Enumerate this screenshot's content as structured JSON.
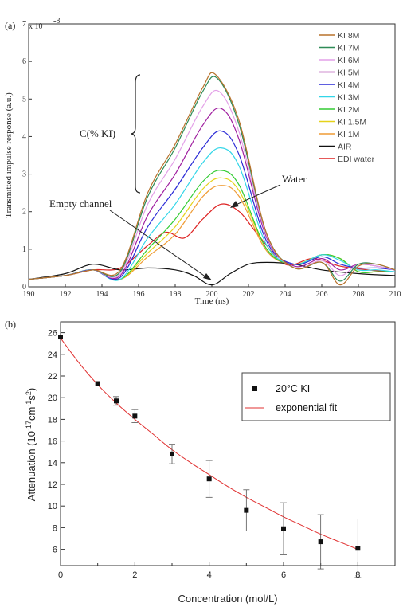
{
  "chart_data": [
    {
      "type": "line",
      "panel_label": "(a)",
      "xlabel": "Time (ns)",
      "ylabel": "Transmitted impulse response (a.u.)",
      "exponent_label": "x 10",
      "exponent_power": "-8",
      "xlim": [
        190,
        210
      ],
      "ylim": [
        0,
        7
      ],
      "xticks": [
        "190",
        "192",
        "194",
        "196",
        "198",
        "200",
        "202",
        "204",
        "206",
        "208",
        "210"
      ],
      "yticks": [
        "0",
        "1",
        "2",
        "3",
        "4",
        "5",
        "6",
        "7"
      ],
      "legend_position": "top-right",
      "series": [
        {
          "name": "KI 8M",
          "color": "#b8722c",
          "x": [
            190,
            192,
            193.5,
            195,
            196.5,
            198,
            199.5,
            200.2,
            201.5,
            203,
            204.5,
            206,
            207,
            208,
            209,
            210
          ],
          "y": [
            0.2,
            0.3,
            0.45,
            0.45,
            2.5,
            3.8,
            5.3,
            5.65,
            4.4,
            1.4,
            0.5,
            0.65,
            0.05,
            0.55,
            0.6,
            0.45
          ]
        },
        {
          "name": "KI 7M",
          "color": "#2e8b57",
          "x": [
            190,
            192,
            193.5,
            195,
            196.5,
            198,
            199.5,
            200.3,
            201.5,
            203,
            204.5,
            206,
            207,
            208,
            209,
            210
          ],
          "y": [
            0.2,
            0.3,
            0.45,
            0.4,
            2.4,
            3.7,
            5.2,
            5.55,
            4.3,
            1.4,
            0.5,
            0.65,
            0.15,
            0.6,
            0.6,
            0.45
          ]
        },
        {
          "name": "KI 6M",
          "color": "#e3a0e8",
          "x": [
            190,
            192,
            193.5,
            195,
            196.5,
            198,
            199.5,
            200.4,
            201.5,
            203,
            204.5,
            206,
            207,
            208,
            209,
            210
          ],
          "y": [
            0.2,
            0.3,
            0.45,
            0.35,
            2.2,
            3.4,
            4.8,
            5.2,
            4.1,
            1.35,
            0.5,
            0.7,
            0.3,
            0.6,
            0.55,
            0.45
          ]
        },
        {
          "name": "KI 5M",
          "color": "#a020a0",
          "x": [
            190,
            192,
            193.5,
            195,
            196.5,
            198,
            199.5,
            200.5,
            201.5,
            203,
            204.5,
            206,
            207,
            208,
            209,
            210
          ],
          "y": [
            0.2,
            0.3,
            0.45,
            0.3,
            1.9,
            3.0,
            4.3,
            4.75,
            3.9,
            1.3,
            0.55,
            0.75,
            0.45,
            0.6,
            0.55,
            0.45
          ]
        },
        {
          "name": "KI 4M",
          "color": "#2a2ad6",
          "x": [
            190,
            192,
            193.5,
            195,
            196.5,
            198,
            199.5,
            200.5,
            201.5,
            203,
            204.5,
            206,
            207,
            208,
            209,
            210
          ],
          "y": [
            0.2,
            0.3,
            0.45,
            0.25,
            1.6,
            2.6,
            3.7,
            4.15,
            3.5,
            1.2,
            0.6,
            0.8,
            0.6,
            0.5,
            0.5,
            0.45
          ]
        },
        {
          "name": "KI 3M",
          "color": "#33d6e8",
          "x": [
            190,
            192,
            193.5,
            195,
            196.5,
            198,
            199.5,
            200.5,
            201.5,
            203,
            204.5,
            206,
            207,
            208,
            209,
            210
          ],
          "y": [
            0.2,
            0.3,
            0.45,
            0.2,
            1.3,
            2.2,
            3.3,
            3.7,
            3.2,
            1.1,
            0.6,
            0.85,
            0.7,
            0.45,
            0.45,
            0.4
          ]
        },
        {
          "name": "KI 2M",
          "color": "#33cc33",
          "x": [
            190,
            192,
            193.5,
            195,
            196.5,
            198,
            199.5,
            200.5,
            201.5,
            203,
            204.5,
            206,
            207,
            208,
            209,
            210
          ],
          "y": [
            0.2,
            0.3,
            0.45,
            0.2,
            1.0,
            1.8,
            2.8,
            3.1,
            2.7,
            1.0,
            0.6,
            0.85,
            0.75,
            0.4,
            0.4,
            0.4
          ]
        },
        {
          "name": "KI 1.5M",
          "color": "#e6d21a",
          "x": [
            190,
            192,
            193.5,
            195,
            196.5,
            198,
            199.5,
            200.5,
            201.5,
            203,
            204.5,
            206,
            207,
            208,
            209,
            210
          ],
          "y": [
            0.2,
            0.3,
            0.45,
            0.2,
            0.9,
            1.6,
            2.6,
            2.9,
            2.55,
            1.0,
            0.6,
            0.85,
            0.75,
            0.4,
            0.4,
            0.4
          ]
        },
        {
          "name": "KI 1M",
          "color": "#ef9c35",
          "x": [
            190,
            192,
            193.5,
            195,
            196.5,
            198,
            199.5,
            200.5,
            201.5,
            203,
            204.5,
            206,
            207,
            208,
            209,
            210
          ],
          "y": [
            0.2,
            0.3,
            0.45,
            0.2,
            0.8,
            1.4,
            2.4,
            2.7,
            2.4,
            0.95,
            0.6,
            0.85,
            0.75,
            0.4,
            0.4,
            0.4
          ]
        },
        {
          "name": "AIR",
          "color": "#111111",
          "x": [
            190,
            192,
            193.5,
            195,
            196.5,
            198,
            199,
            200,
            201,
            202,
            203,
            204.5,
            206,
            208,
            210
          ],
          "y": [
            0.2,
            0.35,
            0.6,
            0.45,
            0.5,
            0.45,
            0.3,
            0.05,
            0.35,
            0.6,
            0.65,
            0.6,
            0.45,
            0.35,
            0.3
          ]
        },
        {
          "name": "EDI water",
          "color": "#dd2222",
          "x": [
            190,
            192,
            193.5,
            195,
            196.5,
            197.5,
            198.5,
            199.5,
            200.5,
            201.5,
            202.5,
            204,
            205.5,
            207,
            208.5,
            210
          ],
          "y": [
            0.2,
            0.3,
            0.45,
            0.5,
            1.1,
            1.45,
            1.3,
            1.8,
            2.2,
            2.0,
            1.4,
            0.6,
            0.75,
            0.55,
            0.45,
            0.4
          ]
        }
      ],
      "annotations": [
        "C(% KI)",
        "Empty channel",
        "Water"
      ]
    },
    {
      "type": "scatter",
      "panel_label": "(b)",
      "xlabel": "Concentration (mol/L)",
      "ylabel": "Attenuation (10",
      "ylabel_sup1": "-17",
      "ylabel_mid": "cm",
      "ylabel_sup2": "-1",
      "ylabel_mid2": "s",
      "ylabel_sup3": "2",
      "ylabel_end": ")",
      "xlim": [
        0,
        9
      ],
      "ylim": [
        4.5,
        27
      ],
      "xticks": [
        "0",
        "2",
        "4",
        "6",
        "8"
      ],
      "yticks": [
        "6",
        "8",
        "10",
        "12",
        "14",
        "16",
        "18",
        "20",
        "22",
        "24",
        "26"
      ],
      "legend_position": "top-right",
      "series": [
        {
          "name": "20°C KI",
          "color": "#111111",
          "x": [
            0,
            1,
            1.5,
            2,
            3,
            4,
            5,
            6,
            7,
            8
          ],
          "y": [
            25.6,
            21.3,
            19.7,
            18.3,
            14.8,
            12.5,
            9.6,
            7.9,
            6.7,
            6.1
          ],
          "err": [
            0,
            0,
            0.4,
            0.6,
            0.9,
            1.7,
            1.9,
            2.4,
            2.5,
            2.7
          ]
        },
        {
          "name": "exponential fit",
          "color": "#e03030",
          "x": [
            0,
            0.5,
            1,
            1.5,
            2,
            2.5,
            3,
            3.5,
            4,
            4.5,
            5,
            5.5,
            6,
            6.5,
            7,
            7.5,
            8
          ],
          "y": [
            25.5,
            23.2,
            21.2,
            19.5,
            18.0,
            16.6,
            15.2,
            14.0,
            12.9,
            11.8,
            10.8,
            9.9,
            9.0,
            8.2,
            7.4,
            6.7,
            6.0
          ]
        }
      ]
    }
  ]
}
